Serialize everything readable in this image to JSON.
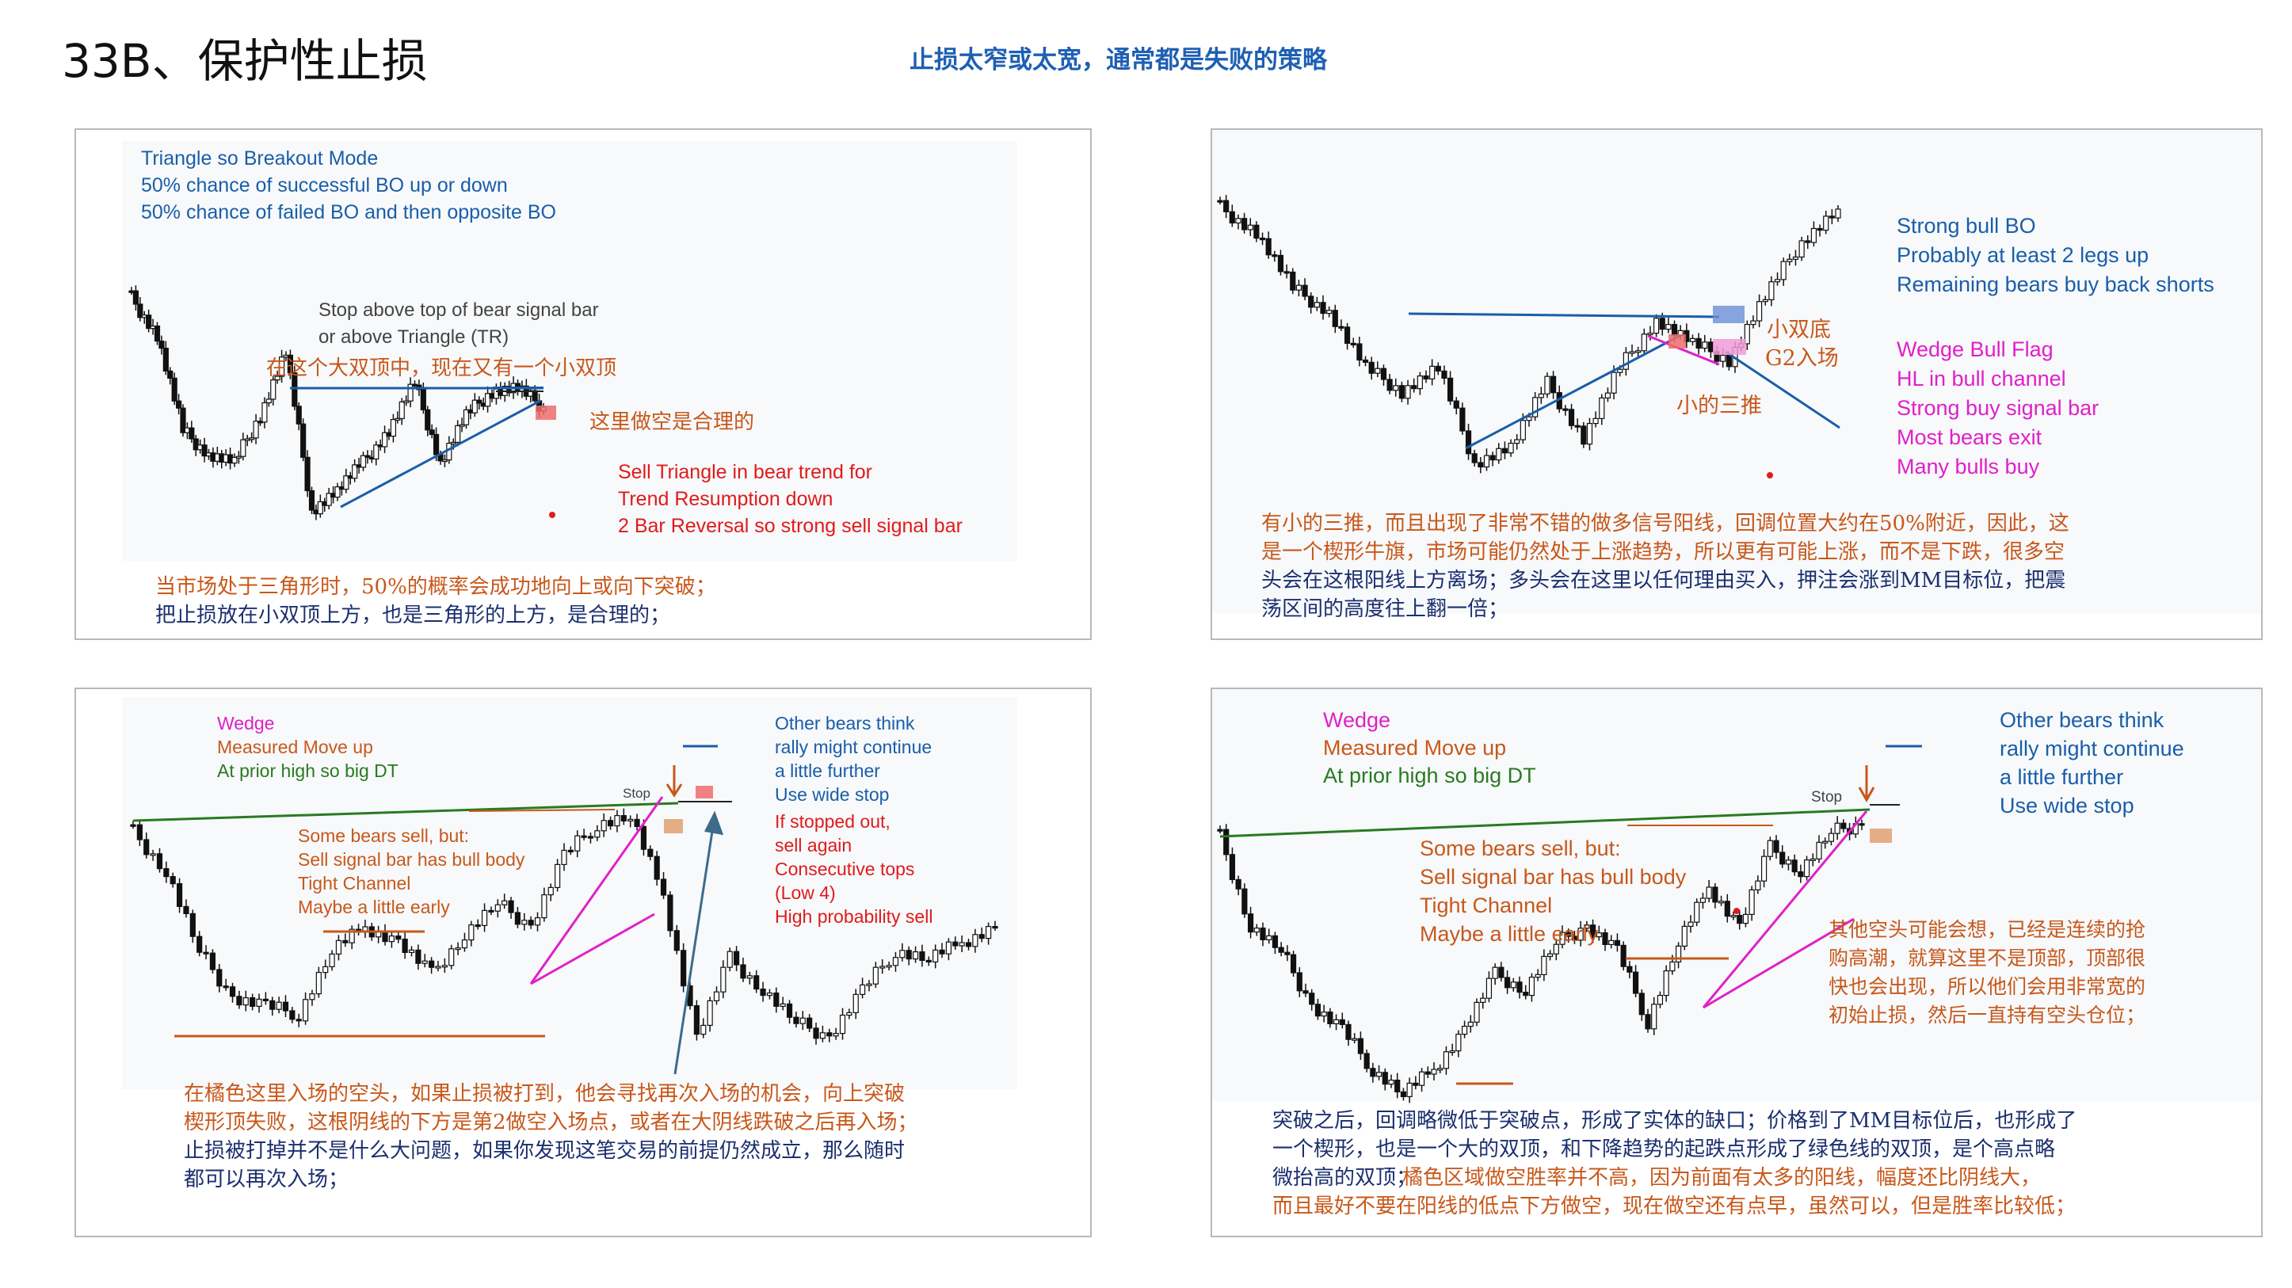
{
  "page": {
    "title": "33B、保护性止损",
    "subtitle": "止损太窄或太宽，通常都是失败的策略"
  },
  "panel1": {
    "notes": [
      "Triangle so Breakout Mode",
      "50% chance of successful BO up or down",
      "50% chance of failed BO and then opposite BO"
    ],
    "stop_note": [
      "Stop above top of bear signal bar",
      "or above Triangle (TR)"
    ],
    "cn_label_1": "在这个大双顶中，现在又有一个小双顶",
    "cn_label_2": "这里做空是合理的",
    "sell_notes": [
      "Sell Triangle in bear trend for",
      "Trend Resumption down",
      "2 Bar Reversal so strong sell signal bar"
    ],
    "caption": [
      "当市场处于三角形时，50%的概率会成功地向上或向下突破；",
      "把止损放在小双顶上方，也是三角形的上方，是合理的；"
    ]
  },
  "panel2": {
    "notes_blue": [
      "Strong bull BO",
      "Probably at least 2 legs up",
      "Remaining bears buy back shorts"
    ],
    "notes_magenta": [
      "Wedge Bull Flag",
      "HL in bull channel",
      "Strong buy signal bar",
      "Most bears exit",
      "Many bulls buy"
    ],
    "label_double_bottom": "小双底",
    "label_g2": "G2入场",
    "label_small_triangle": "小的三推",
    "caption": [
      "有小的三推，而且出现了非常不错的做多信号阳线，回调位置大约在50%附近，因此，这",
      "是一个楔形牛旗，市场可能仍然处于上涨趋势，所以更有可能上涨，而不是下跌，很多空",
      "头会在这根阳线上方离场；多头会在这里以任何理由买入，押注会涨到MM目标位，把震",
      "荡区间的高度往上翻一倍；"
    ]
  },
  "panel3": {
    "wedge": "Wedge",
    "measured_move": "Measured Move up",
    "prior_high": "At prior high so big DT",
    "stop_label": "Stop",
    "bears_notes": [
      "Some bears sell, but:",
      "Sell signal bar has bull body",
      "Tight Channel",
      "Maybe a little early"
    ],
    "other_bears": [
      "Other bears think",
      "rally might continue",
      "a little further",
      "Use wide stop"
    ],
    "if_stopped": [
      "If stopped out,",
      "sell again",
      "Consecutive tops",
      "(Low 4)",
      "High probability sell"
    ],
    "caption_orange": [
      "在橘色这里入场的空头，如果止损被打到，他会寻找再次入场的机会，向上突破",
      "楔形顶失败，这根阴线的下方是第2做空入场点，或者在大阴线跌破之后再入场；"
    ],
    "caption_navy": [
      "止损被打掉并不是什么大问题，如果你发现这笔交易的前提仍然成立，那么随时",
      "都可以再次入场；"
    ]
  },
  "panel4": {
    "wedge": "Wedge",
    "measured_move": "Measured Move up",
    "prior_high": "At prior high so big DT",
    "stop_label": "Stop",
    "bears_notes": [
      "Some bears sell, but:",
      "Sell signal bar has bull body",
      "Tight Channel",
      "Maybe a little early"
    ],
    "other_bears": [
      "Other bears think",
      "rally might continue",
      "a little further",
      "Use wide stop"
    ],
    "cn_note": [
      "其他空头可能会想，已经是连续的抢",
      "购高潮，就算这里不是顶部，顶部很",
      "快也会出现，所以他们会用非常宽的",
      "初始止损，然后一直持有空头仓位；"
    ],
    "caption_navy": [
      "突破之后，回调略微低于突破点，形成了实体的缺口；价格到了MM目标位后，也形成了",
      "一个楔形，也是一个大的双顶，和下降趋势的起跌点形成了绿色线的双顶，是个高点略",
      "微抬高的双顶；"
    ],
    "caption_orange_inline": "橘色区域做空胜率并不高，因为前面有太多的阳线，幅度还比阴线大，",
    "caption_orange_last": "而且最好不要在阳线的低点下方做空，现在做空还有点早，虽然可以，但是胜率比较低；"
  },
  "colors": {
    "blue": "#1a5ea8",
    "red": "#e01b1b",
    "orange": "#c8581a",
    "magenta": "#e020c8",
    "green": "#2a7a20",
    "navy": "#1b2f6e"
  }
}
